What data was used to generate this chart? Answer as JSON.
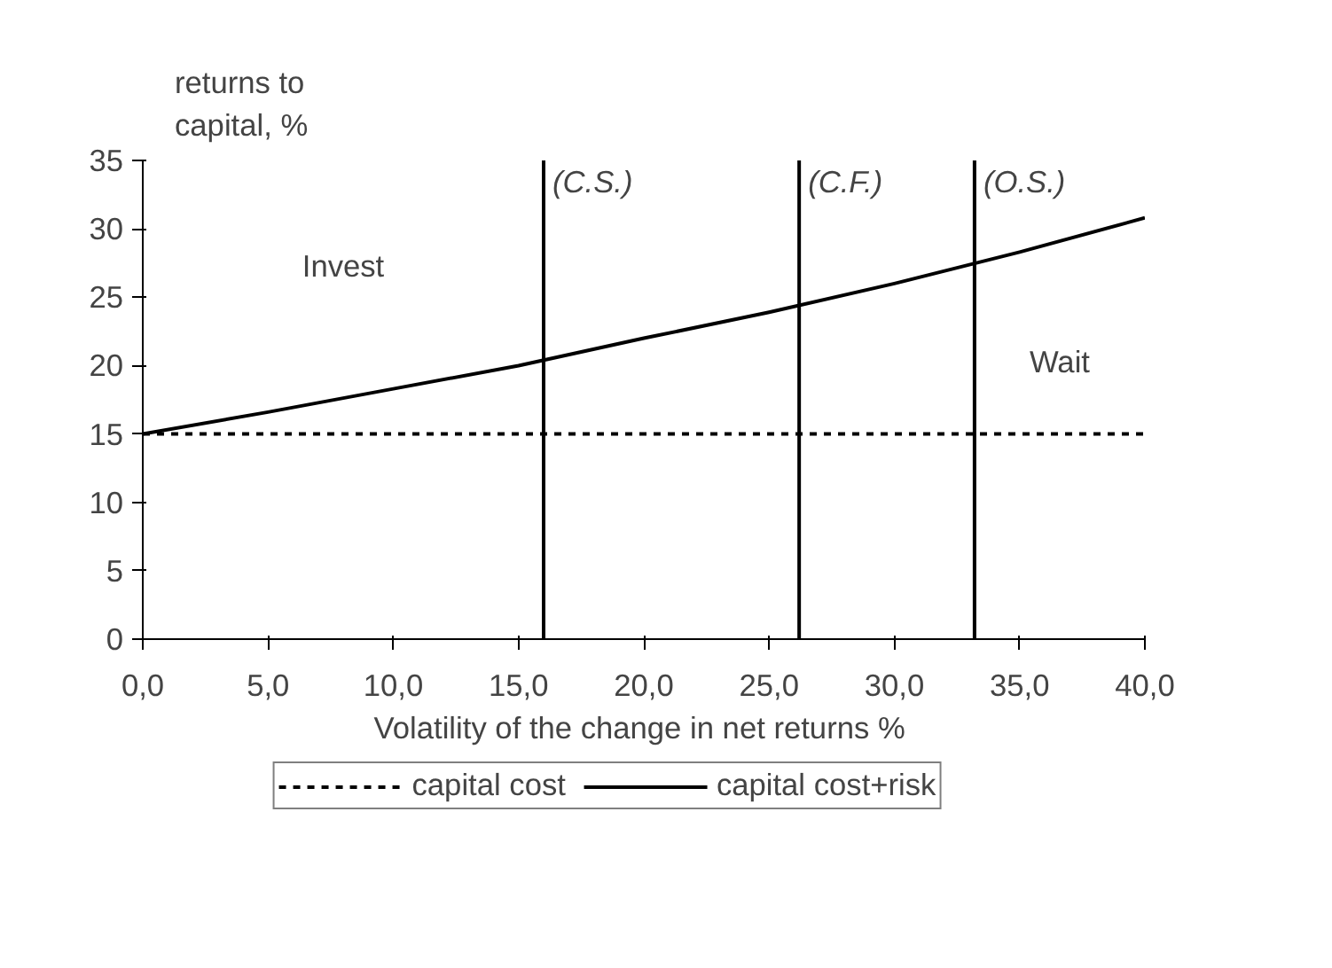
{
  "chart_data": {
    "type": "line",
    "xlabel": "Volatility of the change in net returns  %",
    "ylabel": "returns to\ncapital, %",
    "x": [
      0,
      5,
      10,
      15,
      20,
      25,
      30,
      35,
      40
    ],
    "series": [
      {
        "name": "capital cost",
        "color": "#000000",
        "line_style": "dotted",
        "values": [
          15,
          15,
          15,
          15,
          15,
          15,
          15,
          15,
          15
        ]
      },
      {
        "name": "capital cost+risk",
        "color": "#000000",
        "line_style": "solid",
        "values": [
          15,
          16.6,
          18.3,
          20,
          22,
          23.9,
          26,
          28.3,
          30.8
        ]
      }
    ],
    "xlim": [
      0,
      40
    ],
    "ylim": [
      0,
      35
    ],
    "xticks": [
      {
        "value": 0,
        "label": "0,0"
      },
      {
        "value": 5,
        "label": "5,0"
      },
      {
        "value": 10,
        "label": "10,0"
      },
      {
        "value": 15,
        "label": "15,0"
      },
      {
        "value": 20,
        "label": "20,0"
      },
      {
        "value": 25,
        "label": "25,0"
      },
      {
        "value": 30,
        "label": "30,0"
      },
      {
        "value": 35,
        "label": "35,0"
      },
      {
        "value": 40,
        "label": "40,0"
      }
    ],
    "yticks": [
      0,
      5,
      10,
      15,
      20,
      25,
      30,
      35
    ],
    "ref_lines": [
      {
        "axis": "x",
        "value": 16,
        "label": "(C.S.)",
        "color": "#000000"
      },
      {
        "axis": "x",
        "value": 26.2,
        "label": "(C.F.)",
        "color": "#000000"
      },
      {
        "axis": "x",
        "value": 33.2,
        "label": "(O.S.)",
        "color": "#000000"
      }
    ],
    "annotations": [
      "Invest",
      "Wait"
    ],
    "grid": false,
    "legend": "bottom",
    "marker": "none"
  }
}
